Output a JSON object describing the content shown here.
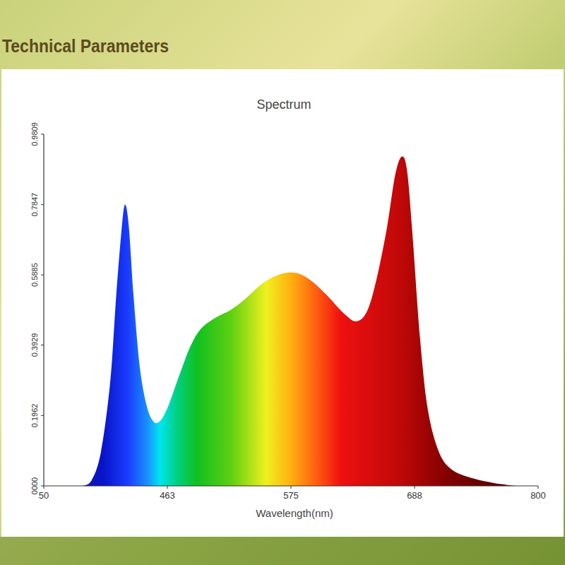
{
  "page": {
    "heading": "Technical Parameters"
  },
  "chart_data": {
    "type": "area",
    "title": "Spectrum",
    "x_label": "Wavelength(nm)",
    "x": [
      179,
      210,
      241,
      272,
      292,
      309,
      321,
      334,
      350,
      371,
      395,
      416,
      432,
      449,
      465,
      474,
      484,
      494,
      507,
      520,
      533,
      546,
      559,
      572,
      583,
      594,
      609,
      624,
      635,
      645,
      654,
      663,
      670,
      676,
      681,
      686,
      693,
      700,
      710,
      722,
      742,
      760,
      780
    ],
    "values": [
      0,
      0.016,
      0.095,
      0.29,
      0.53,
      0.705,
      0.784,
      0.725,
      0.53,
      0.33,
      0.22,
      0.18,
      0.177,
      0.193,
      0.232,
      0.31,
      0.39,
      0.44,
      0.47,
      0.49,
      0.52,
      0.557,
      0.583,
      0.595,
      0.591,
      0.571,
      0.528,
      0.479,
      0.459,
      0.49,
      0.587,
      0.725,
      0.863,
      0.918,
      0.882,
      0.705,
      0.41,
      0.213,
      0.095,
      0.045,
      0.02,
      0.008,
      0
    ],
    "xlim": [
      50,
      800
    ],
    "xticks": [
      50,
      463,
      575,
      688,
      800
    ],
    "ylim": [
      0,
      0.9809
    ],
    "yticks": [
      {
        "value": 0,
        "label": "0000"
      },
      0.1962,
      0.3929,
      0.5885,
      0.7847,
      0.9809
    ],
    "grid": false
  }
}
